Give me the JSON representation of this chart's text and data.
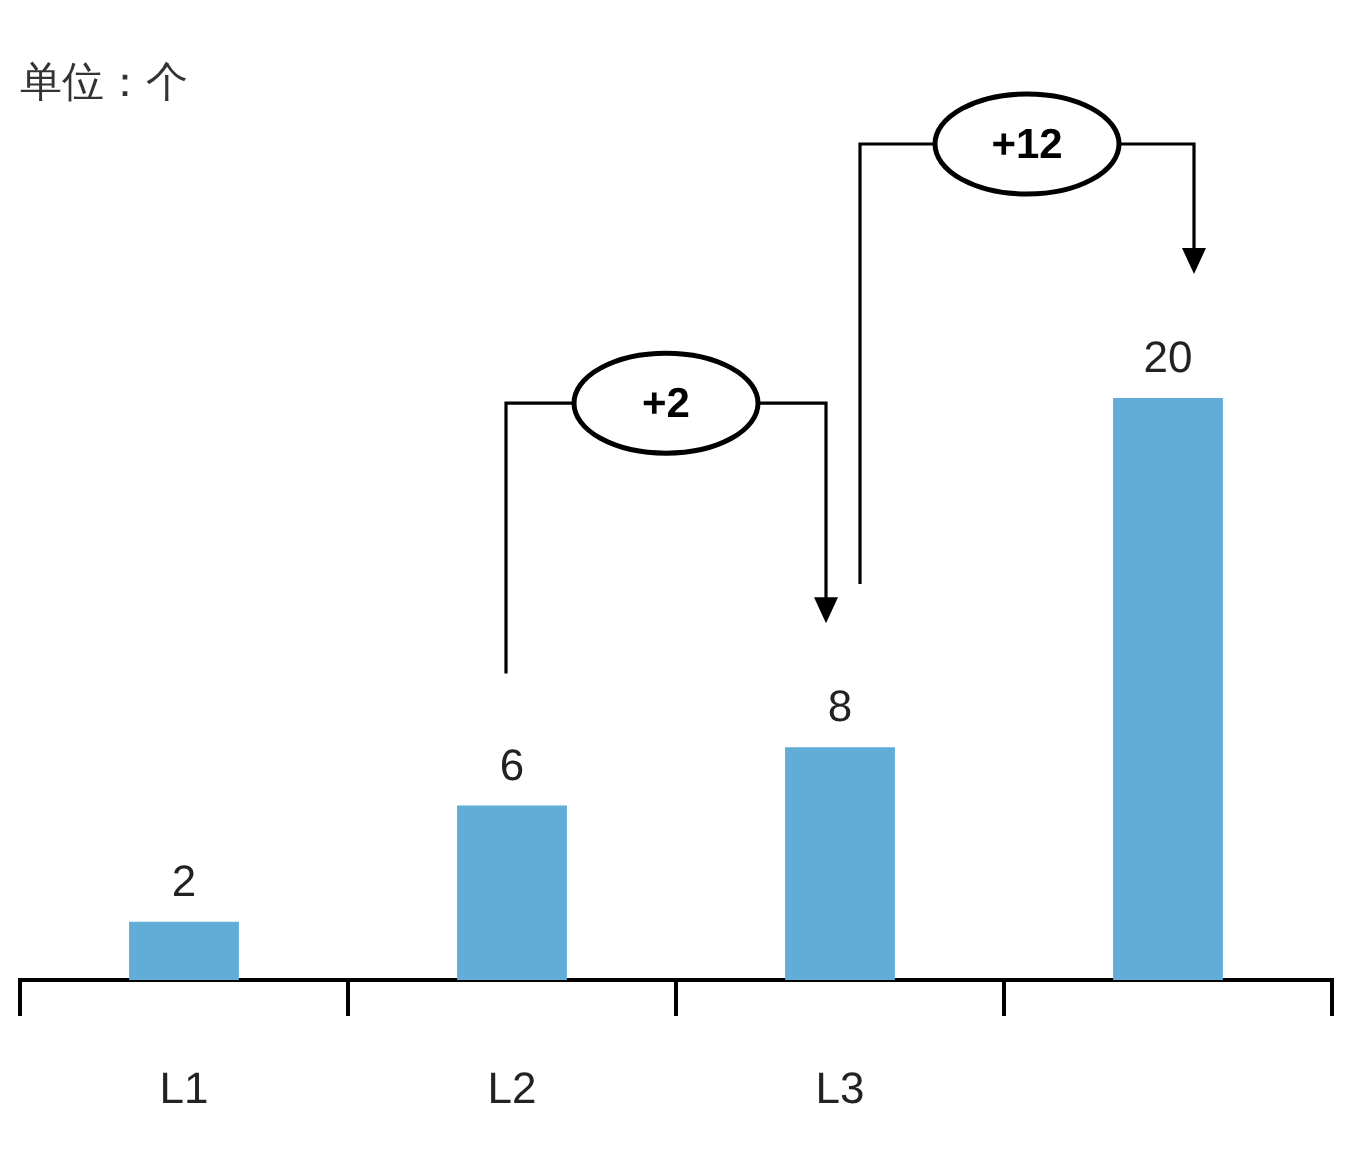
{
  "chart_data": {
    "type": "bar",
    "categories": [
      "L1",
      "L2",
      "L3",
      null
    ],
    "values": [
      2,
      6,
      8,
      20
    ],
    "color": "#62acd8",
    "data_labels": true,
    "annotations": [
      "单位：个",
      "+2",
      "+12"
    ]
  }
}
